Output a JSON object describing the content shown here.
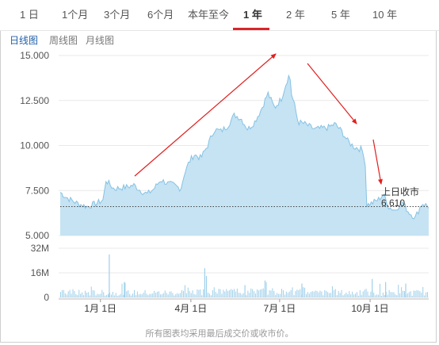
{
  "tabs": [
    {
      "label": "1 日",
      "active": false
    },
    {
      "label": "1个月",
      "active": false
    },
    {
      "label": "3个月",
      "active": false
    },
    {
      "label": "6个月",
      "active": false
    },
    {
      "label": "本年至今",
      "active": false
    },
    {
      "label": "1 年",
      "active": true
    },
    {
      "label": "2 年",
      "active": false
    },
    {
      "label": "5 年",
      "active": false
    },
    {
      "label": "10 年",
      "active": false
    }
  ],
  "subtabs": [
    {
      "label": "日线图",
      "active": true
    },
    {
      "label": "周线图",
      "active": false
    },
    {
      "label": "月线图",
      "active": false
    }
  ],
  "footer": "所有图表均采用最后成交价或收市价。",
  "colors": {
    "area_fill": "#c5e3f3",
    "area_line": "#86c2e3",
    "volume": "#9fd0ea",
    "arrow": "#e02020",
    "accent": "#d9262b"
  },
  "chart_data": [
    {
      "type": "area",
      "price_ticks": [
        "15.000",
        "12.500",
        "10.000",
        "7.500",
        "5.000"
      ],
      "ylim": [
        5.0,
        15.0
      ],
      "x_ticks": [
        {
          "label": "1月 1日",
          "t": 0.12
        },
        {
          "label": "4月 1日",
          "t": 0.39
        },
        {
          "label": "7月 1日",
          "t": 0.655
        },
        {
          "label": "10月 1日",
          "t": 0.925
        }
      ],
      "series_keypoints": [
        [
          0.0,
          7.4
        ],
        [
          0.02,
          7.1
        ],
        [
          0.05,
          6.8
        ],
        [
          0.08,
          6.6
        ],
        [
          0.11,
          6.8
        ],
        [
          0.13,
          7.0
        ],
        [
          0.135,
          8.1
        ],
        [
          0.16,
          7.6
        ],
        [
          0.2,
          7.7
        ],
        [
          0.22,
          7.8
        ],
        [
          0.24,
          7.5
        ],
        [
          0.26,
          7.3
        ],
        [
          0.28,
          7.6
        ],
        [
          0.3,
          8.1
        ],
        [
          0.32,
          7.9
        ],
        [
          0.34,
          7.8
        ],
        [
          0.36,
          7.6
        ],
        [
          0.37,
          8.4
        ],
        [
          0.385,
          9.1
        ],
        [
          0.4,
          9.5
        ],
        [
          0.42,
          9.3
        ],
        [
          0.44,
          10.0
        ],
        [
          0.46,
          10.9
        ],
        [
          0.48,
          10.8
        ],
        [
          0.5,
          11.1
        ],
        [
          0.52,
          11.7
        ],
        [
          0.54,
          11.5
        ],
        [
          0.56,
          10.9
        ],
        [
          0.58,
          11.3
        ],
        [
          0.6,
          12.0
        ],
        [
          0.62,
          12.9
        ],
        [
          0.64,
          12.1
        ],
        [
          0.66,
          12.6
        ],
        [
          0.675,
          13.5
        ],
        [
          0.685,
          14.0
        ],
        [
          0.69,
          12.9
        ],
        [
          0.7,
          12.2
        ],
        [
          0.71,
          11.3
        ],
        [
          0.73,
          11.2
        ],
        [
          0.76,
          10.9
        ],
        [
          0.8,
          11.0
        ],
        [
          0.82,
          11.2
        ],
        [
          0.84,
          10.8
        ],
        [
          0.86,
          10.2
        ],
        [
          0.88,
          9.9
        ],
        [
          0.9,
          9.8
        ],
        [
          0.91,
          9.3
        ],
        [
          0.915,
          6.7
        ],
        [
          0.93,
          6.8
        ],
        [
          0.95,
          7.0
        ],
        [
          0.965,
          7.3
        ],
        [
          0.98,
          6.6
        ],
        [
          1.0,
          6.4
        ],
        [
          1.02,
          6.9
        ],
        [
          1.04,
          6.3
        ],
        [
          1.06,
          6.0
        ],
        [
          1.08,
          6.8
        ],
        [
          1.1,
          6.61
        ]
      ],
      "prev_close": 6.61,
      "prev_close_label": "上日收市",
      "prev_close_value": "6.610"
    },
    {
      "type": "bar",
      "volume_ticks": [
        "32M",
        "16M",
        "0"
      ],
      "ylim": [
        0,
        32
      ],
      "spikes": [
        {
          "t": 0.145,
          "v": 28
        },
        {
          "t": 0.43,
          "v": 19
        },
        {
          "t": 0.435,
          "v": 14
        },
        {
          "t": 0.19,
          "v": 10
        },
        {
          "t": 0.55,
          "v": 8
        },
        {
          "t": 0.61,
          "v": 11
        },
        {
          "t": 0.72,
          "v": 9
        },
        {
          "t": 0.93,
          "v": 12
        },
        {
          "t": 0.97,
          "v": 10
        },
        {
          "t": 1.03,
          "v": 9
        }
      ]
    }
  ]
}
